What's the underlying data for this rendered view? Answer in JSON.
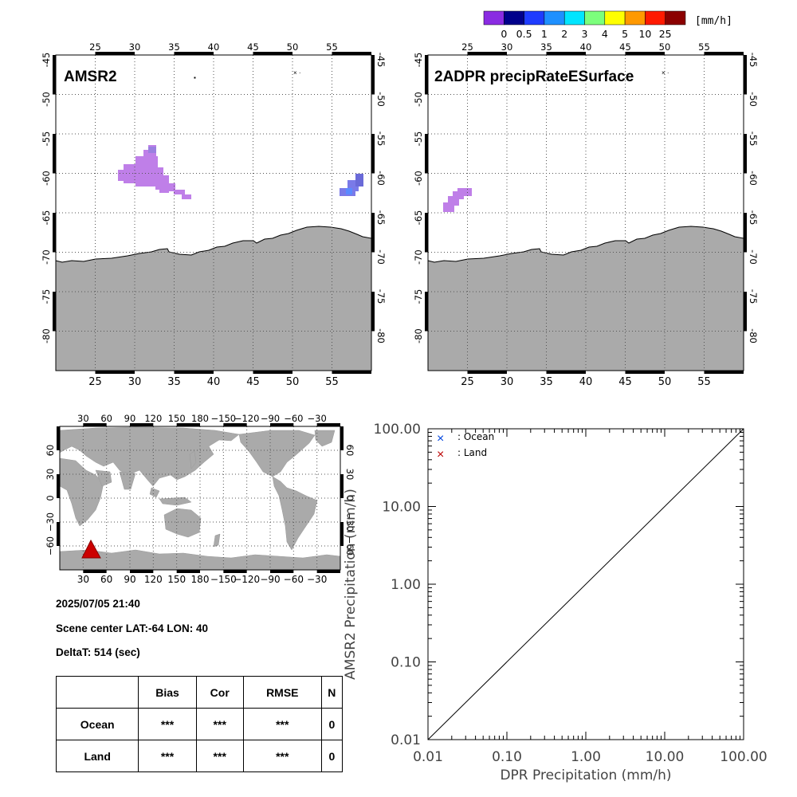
{
  "colorbar": {
    "unit": "[mm/h]",
    "labels": [
      "0",
      "0.5",
      "1",
      "2",
      "3",
      "4",
      "5",
      "10",
      "25"
    ],
    "colors": [
      "#8a2be2",
      "#00008b",
      "#1e3cff",
      "#1e90ff",
      "#00e5ff",
      "#7cff7c",
      "#ffff00",
      "#ff9900",
      "#ff1a00",
      "#8b0000"
    ]
  },
  "maps": [
    {
      "title": "AMSR2",
      "top_lon_ticks": [
        "25",
        "30",
        "35",
        "40",
        "45",
        "50",
        "55"
      ],
      "bottom_lon_ticks": [
        "25",
        "30",
        "35",
        "40",
        "45",
        "50",
        "55"
      ],
      "left_lat_ticks": [
        "-45",
        "-50",
        "-55",
        "-60",
        "-65",
        "-70",
        "-75",
        "-80"
      ],
      "right_lat_ticks": [
        "-45",
        "-50",
        "-55",
        "-60",
        "-65",
        "-70",
        "-75",
        "-80"
      ]
    },
    {
      "title": "2ADPR precipRateESurface",
      "top_lon_ticks": [
        "25",
        "30",
        "35",
        "40",
        "45",
        "50",
        "55"
      ],
      "bottom_lon_ticks": [
        "25",
        "30",
        "35",
        "40",
        "45",
        "50",
        "55"
      ],
      "left_lat_ticks": [
        "-45",
        "-50",
        "-55",
        "-60",
        "-65",
        "-70",
        "-75",
        "-80"
      ],
      "right_lat_ticks": [
        "-45",
        "-50",
        "-55",
        "-60",
        "-65",
        "-70",
        "-75",
        "-80"
      ]
    }
  ],
  "world_map": {
    "top_lon_ticks": [
      "30",
      "60",
      "90",
      "120",
      "150",
      "180",
      "−150",
      "−120",
      "−90",
      "−60",
      "−30"
    ],
    "bottom_lon_ticks": [
      "30",
      "60",
      "90",
      "120",
      "150",
      "180",
      "−150",
      "−120",
      "−90",
      "−60",
      "−30"
    ],
    "left_lat_ticks": [
      "60",
      "30",
      "0",
      "−30",
      "−60"
    ],
    "right_lat_ticks": [
      "60",
      "30",
      "0",
      "−30",
      "−60"
    ]
  },
  "info": {
    "datetime": "2025/07/05 21:40",
    "scene_center": "Scene center LAT:-64   LON:  40",
    "delta_t": "DeltaT:  514 (sec)"
  },
  "stats_table": {
    "headers": [
      "",
      "Bias",
      "Cor",
      "RMSE",
      "N"
    ],
    "rows": [
      {
        "label": "Ocean",
        "bias": "***",
        "cor": "***",
        "rmse": "***",
        "n": "0"
      },
      {
        "label": "Land",
        "bias": "***",
        "cor": "***",
        "rmse": "***",
        "n": "0"
      }
    ]
  },
  "chart_data": {
    "type": "scatter",
    "xscale": "log",
    "yscale": "log",
    "xlim": [
      0.01,
      100
    ],
    "ylim": [
      0.01,
      100
    ],
    "xticks": [
      "0.01",
      "0.10",
      "1.00",
      "10.00",
      "100.00"
    ],
    "yticks": [
      "0.01",
      "0.10",
      "1.00",
      "10.00",
      "100.00"
    ],
    "xlabel": "DPR Precipitation (mm/h)",
    "ylabel": "AMSR2 Precipitation (mm/h)",
    "legend_placement": "top-left",
    "series": [
      {
        "name": ": Ocean",
        "color": "#0044dd",
        "points": []
      },
      {
        "name": ": Land",
        "color": "#bb0000",
        "points": []
      }
    ],
    "reference_line": {
      "x": [
        0.01,
        100
      ],
      "y": [
        0.01,
        100
      ]
    }
  }
}
